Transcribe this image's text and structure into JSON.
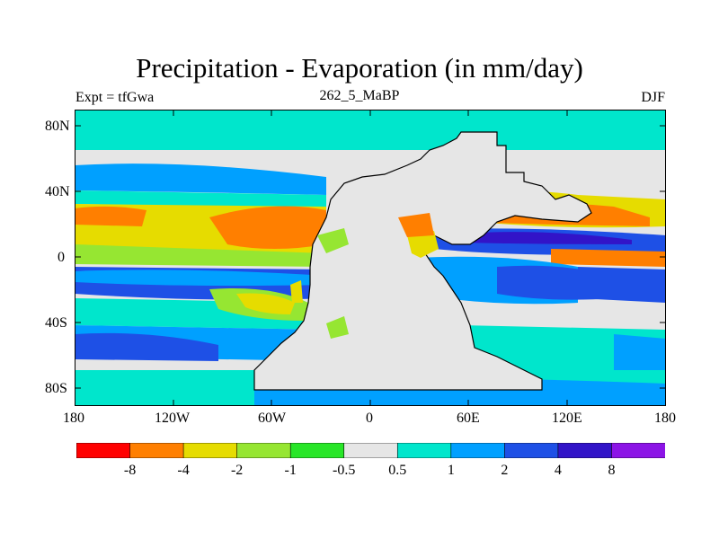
{
  "header": {
    "title": "Precipitation - Evaporation (in mm/day)",
    "left": "Expt = tfGwa",
    "center": "262_5_MaBP",
    "right": "DJF"
  },
  "axes": {
    "lat_ticks": [
      "80N",
      "40N",
      "0",
      "40S",
      "80S"
    ],
    "lon_ticks": [
      "180",
      "120W",
      "60W",
      "0",
      "60E",
      "120E",
      "180"
    ]
  },
  "colorbar": {
    "colors": [
      "#ff0000",
      "#ff7f00",
      "#e6dc00",
      "#96e632",
      "#28e628",
      "#e6e6e6",
      "#00e6cc",
      "#00a0ff",
      "#1e50e6",
      "#3214c8",
      "#8c14e6"
    ],
    "labels": [
      "-8",
      "-4",
      "-2",
      "-1",
      "-0.5",
      "0.5",
      "1",
      "2",
      "4",
      "8"
    ]
  }
}
